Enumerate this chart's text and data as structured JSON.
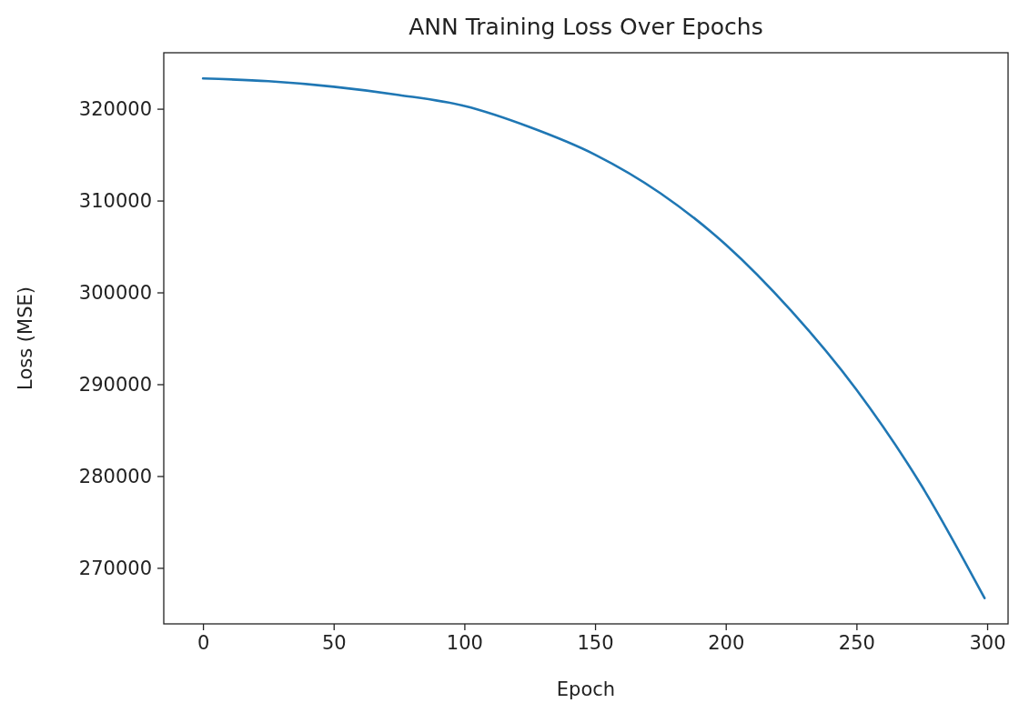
{
  "chart_data": {
    "type": "line",
    "title": "ANN Training Loss Over Epochs",
    "xlabel": "Epoch",
    "ylabel": "Loss (MSE)",
    "x": [
      0,
      25,
      50,
      75,
      100,
      125,
      150,
      175,
      200,
      225,
      250,
      275,
      299
    ],
    "series": [
      {
        "color": "#1f77b4",
        "values": [
          323300,
          323000,
          322400,
          321500,
          320300,
          318000,
          315000,
          310800,
          305200,
          298000,
          289400,
          278900,
          266700
        ]
      }
    ],
    "xlim": [
      -15,
      308
    ],
    "xticks": [
      0,
      50,
      100,
      150,
      200,
      250,
      300
    ],
    "ylim": [
      263900,
      326100
    ],
    "yticks": [
      270000,
      280000,
      290000,
      300000,
      310000,
      320000
    ],
    "grid": false,
    "legend": false,
    "marker": "none",
    "line_style": "solid"
  }
}
